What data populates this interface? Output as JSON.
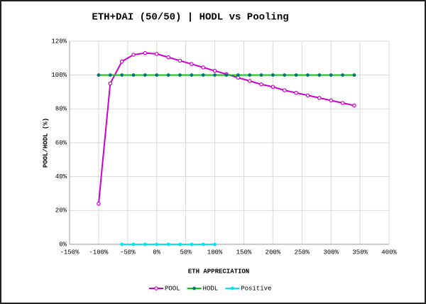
{
  "chart_data": {
    "type": "line",
    "title": "ETH+DAI (50/50) | HODL vs Pooling",
    "x_label": "ETH APPRECIATION",
    "y_label": "POOL/HODL (%)",
    "x": [
      -100,
      -80,
      -60,
      -40,
      -20,
      0,
      20,
      40,
      60,
      80,
      100,
      120,
      140,
      160,
      180,
      200,
      220,
      240,
      260,
      280,
      300,
      320,
      340
    ],
    "series": [
      {
        "name": "POOL",
        "color": "#cc00cc",
        "marker": "hollow",
        "values": [
          24,
          95,
          108,
          112,
          113,
          112.5,
          110.5,
          108.5,
          106.5,
          104.5,
          102.5,
          100.5,
          98.5,
          96.5,
          94.5,
          93,
          91,
          89.5,
          88,
          86.5,
          85,
          83.5,
          82
        ]
      },
      {
        "name": "HODL",
        "color": "#00cc00",
        "marker_color": "#007777",
        "marker": "filled",
        "values": [
          100,
          100,
          100,
          100,
          100,
          100,
          100,
          100,
          100,
          100,
          100,
          100,
          100,
          100,
          100,
          100,
          100,
          100,
          100,
          100,
          100,
          100,
          100
        ]
      },
      {
        "name": "Positive",
        "color": "#00e5ee",
        "marker": "filled",
        "values": [
          null,
          null,
          0,
          0,
          0,
          0,
          0,
          0,
          0,
          0,
          0,
          null,
          null,
          null,
          null,
          null,
          null,
          null,
          null,
          null,
          null,
          null,
          null
        ]
      }
    ],
    "xlim": [
      -150,
      400
    ],
    "xticks": [
      {
        "value": -150,
        "label": "-150%"
      },
      {
        "value": -100,
        "label": "-100%"
      },
      {
        "value": -50,
        "label": "-50%"
      },
      {
        "value": 0,
        "label": "0%"
      },
      {
        "value": 50,
        "label": "50%"
      },
      {
        "value": 100,
        "label": "100%"
      },
      {
        "value": 150,
        "label": "150%"
      },
      {
        "value": 200,
        "label": "200%"
      },
      {
        "value": 250,
        "label": "250%"
      },
      {
        "value": 300,
        "label": "300%"
      },
      {
        "value": 350,
        "label": "350%"
      },
      {
        "value": 400,
        "label": "400%"
      }
    ],
    "ylim": [
      0,
      120
    ],
    "yticks": [
      {
        "value": 0,
        "label": "0%"
      },
      {
        "value": 20,
        "label": "20%"
      },
      {
        "value": 40,
        "label": "40%"
      },
      {
        "value": 60,
        "label": "60%"
      },
      {
        "value": 80,
        "label": "80%"
      },
      {
        "value": 100,
        "label": "100%"
      },
      {
        "value": 120,
        "label": "120%"
      }
    ],
    "grid": true,
    "legend": "bottom"
  }
}
